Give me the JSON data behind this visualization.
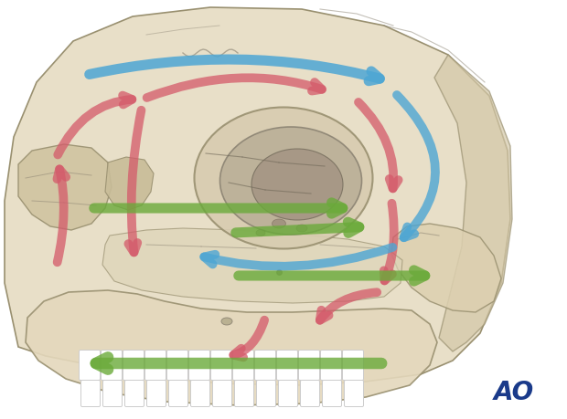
{
  "background_color": "#ffffff",
  "figure_size": [
    6.2,
    4.59
  ],
  "dpi": 100,
  "ao_text": "AO",
  "ao_color": "#1a3a8a",
  "ao_fontsize": 20,
  "blue_color": "#4da6d4",
  "red_color": "#d45a6a",
  "green_color": "#6aaa3a",
  "skull_fill": "#e8dfc8",
  "skull_dark": "#d4c8a8",
  "skull_edge": "#999070",
  "orbit_fill": "#c8bcaa",
  "orbit_inner": "#a89880",
  "jaw_fill": "#e0d4b8",
  "tooth_fill": "#f8f8f8",
  "tooth_edge": "#bbbbbb"
}
